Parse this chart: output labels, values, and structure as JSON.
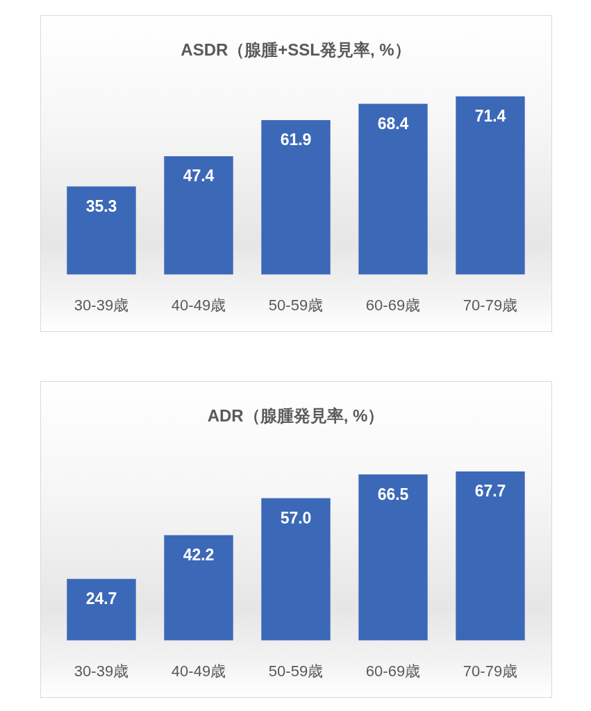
{
  "chart_data": [
    {
      "type": "bar",
      "title": "ASDR（腺腫+SSL発見率, %）",
      "categories": [
        "30-39歳",
        "40-49歳",
        "50-59歳",
        "60-69歳",
        "70-79歳"
      ],
      "values": [
        35.3,
        47.4,
        61.9,
        68.4,
        71.4
      ],
      "color": "#3c68b8",
      "data_labels": true,
      "tick_labels": "x"
    },
    {
      "type": "bar",
      "title": "ADR（腺腫発見率, %）",
      "categories": [
        "30-39歳",
        "40-49歳",
        "50-59歳",
        "60-69歳",
        "70-79歳"
      ],
      "values": [
        24.7,
        42.2,
        57.0,
        66.5,
        67.7
      ],
      "color": "#3c68b8",
      "value_labels": [
        "24.7",
        "42.2",
        "57.0",
        "66.5",
        "67.7"
      ],
      "tick_labels": "x"
    }
  ]
}
